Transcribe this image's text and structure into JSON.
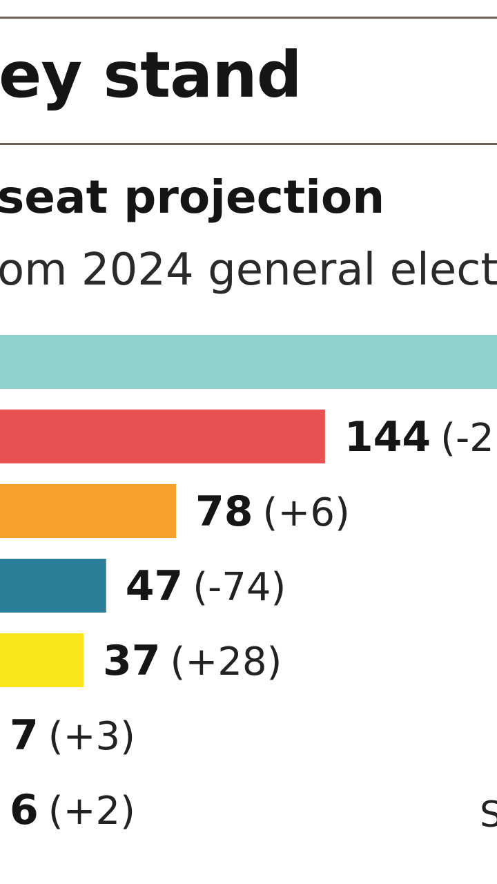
{
  "header": {
    "title": "ey stand",
    "subtitle": "seat projection",
    "note": "om 2024 general elect"
  },
  "footer": {
    "source_fragment": "S"
  },
  "chart_data": {
    "type": "bar",
    "orientation": "horizontal",
    "title": "ey stand",
    "subtitle": "seat projection",
    "note": "om 2024 general elect",
    "categories": [
      "",
      "",
      "",
      "",
      "",
      "",
      ""
    ],
    "series": [
      {
        "values": [
          null,
          144,
          78,
          47,
          37,
          7,
          6
        ],
        "changes": [
          "",
          "-2",
          "+6",
          "-74",
          "+28",
          "+3",
          "+2"
        ],
        "labels": [
          "",
          "144 (-2",
          "78 (+6)",
          "47 (-74)",
          "37 (+28)",
          "7 (+3)",
          "6 (+2)"
        ],
        "value_labels": [
          "",
          "144",
          "78",
          "47",
          "37",
          "7",
          "6"
        ],
        "change_labels": [
          "",
          "(-2",
          "(+6)",
          "(-74)",
          "(+28)",
          "(+3)",
          "(+2)"
        ],
        "colors": [
          "#8dd3cb",
          "#ea5152",
          "#f7a22c",
          "#2c7d97",
          "#fbe51b",
          "",
          ""
        ]
      }
    ],
    "grid": false,
    "legend": "none"
  }
}
